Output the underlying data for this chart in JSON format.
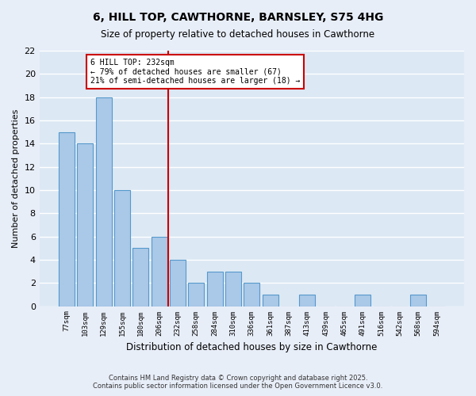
{
  "title1": "6, HILL TOP, CAWTHORNE, BARNSLEY, S75 4HG",
  "title2": "Size of property relative to detached houses in Cawthorne",
  "xlabel": "Distribution of detached houses by size in Cawthorne",
  "ylabel": "Number of detached properties",
  "bins": [
    "77sqm",
    "103sqm",
    "129sqm",
    "155sqm",
    "180sqm",
    "206sqm",
    "232sqm",
    "258sqm",
    "284sqm",
    "310sqm",
    "336sqm",
    "361sqm",
    "387sqm",
    "413sqm",
    "439sqm",
    "465sqm",
    "491sqm",
    "516sqm",
    "542sqm",
    "568sqm",
    "594sqm"
  ],
  "values": [
    15,
    14,
    18,
    10,
    5,
    6,
    4,
    2,
    3,
    3,
    2,
    1,
    0,
    1,
    0,
    0,
    1,
    0,
    0,
    1,
    0
  ],
  "bar_color": "#aac8e8",
  "bar_edge_color": "#5599cc",
  "highlight_bin_index": 6,
  "highlight_line_color": "#cc0000",
  "annotation_line1": "6 HILL TOP: 232sqm",
  "annotation_line2": "← 79% of detached houses are smaller (67)",
  "annotation_line3": "21% of semi-detached houses are larger (18) →",
  "annotation_box_color": "#ffffff",
  "annotation_box_edge": "#cc0000",
  "ylim": [
    0,
    22
  ],
  "yticks": [
    0,
    2,
    4,
    6,
    8,
    10,
    12,
    14,
    16,
    18,
    20,
    22
  ],
  "bg_color": "#e8eef8",
  "plot_bg_color": "#dce8f4",
  "grid_color": "#ffffff",
  "footer1": "Contains HM Land Registry data © Crown copyright and database right 2025.",
  "footer2": "Contains public sector information licensed under the Open Government Licence v3.0."
}
